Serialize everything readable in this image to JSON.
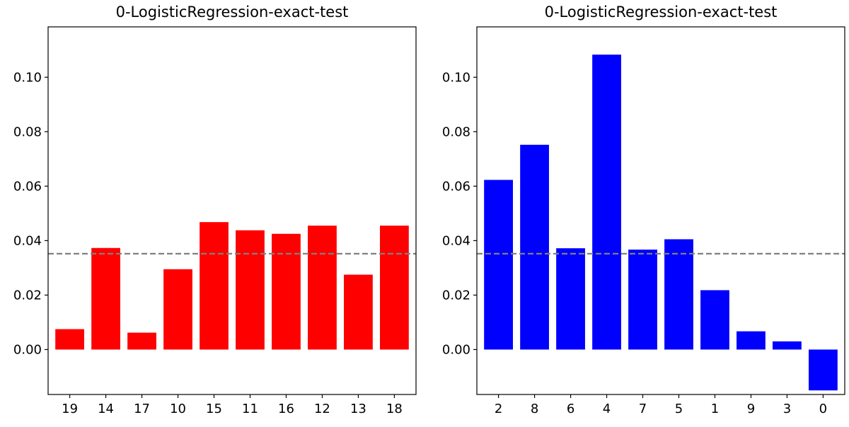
{
  "chart_data": [
    {
      "type": "bar",
      "title": "0-LogisticRegression-exact-test",
      "xlabel": "",
      "ylabel": "",
      "categories": [
        "19",
        "14",
        "17",
        "10",
        "15",
        "11",
        "16",
        "12",
        "13",
        "18"
      ],
      "values": [
        0.0075,
        0.0373,
        0.0062,
        0.0295,
        0.0468,
        0.0438,
        0.0425,
        0.0455,
        0.0275,
        0.0455
      ],
      "color": "#ff0000",
      "reference_line": 0.0352,
      "reference_line_style": "dashed",
      "reference_line_color": "#808080",
      "ylim": [
        -0.0165,
        0.1185
      ],
      "yticks": [
        0.0,
        0.02,
        0.04,
        0.06,
        0.08,
        0.1
      ],
      "ytick_labels": [
        "0.00",
        "0.02",
        "0.04",
        "0.06",
        "0.08",
        "0.10"
      ],
      "grid": false,
      "legend": "none"
    },
    {
      "type": "bar",
      "title": "0-LogisticRegression-exact-test",
      "xlabel": "",
      "ylabel": "",
      "categories": [
        "2",
        "8",
        "6",
        "4",
        "7",
        "5",
        "1",
        "9",
        "3",
        "0"
      ],
      "values": [
        0.0623,
        0.0752,
        0.0372,
        0.1083,
        0.0367,
        0.0405,
        0.0218,
        0.0067,
        0.003,
        -0.015
      ],
      "color": "#0000ff",
      "reference_line": 0.0352,
      "reference_line_style": "dashed",
      "reference_line_color": "#808080",
      "ylim": [
        -0.0165,
        0.1185
      ],
      "yticks": [
        0.0,
        0.02,
        0.04,
        0.06,
        0.08,
        0.1
      ],
      "ytick_labels": [
        "0.00",
        "0.02",
        "0.04",
        "0.06",
        "0.08",
        "0.10"
      ],
      "grid": false,
      "legend": "none"
    }
  ]
}
